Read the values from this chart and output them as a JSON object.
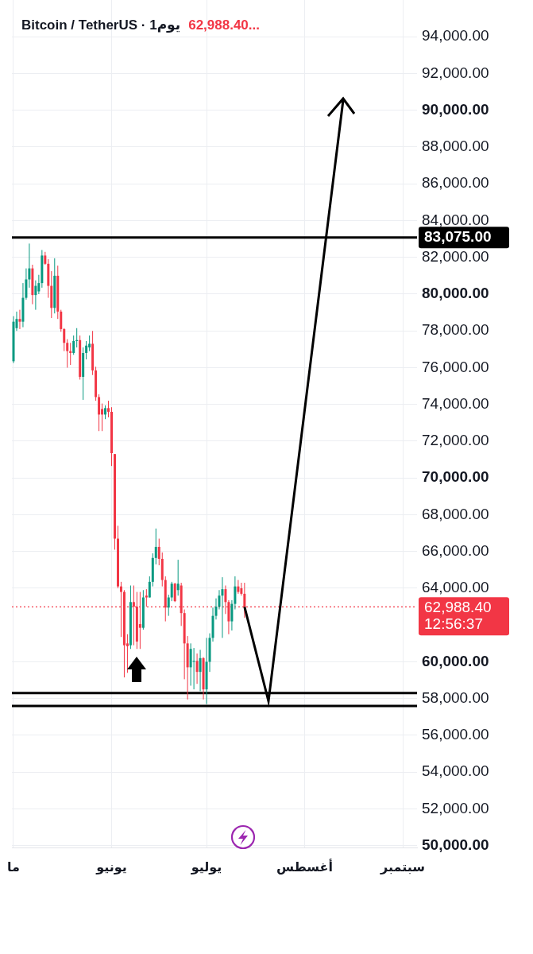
{
  "chart_data": {
    "type": "candlestick",
    "title": "Bitcoin / TetherUS · 1يوم",
    "subtitle": "62,988.40...",
    "categories": [
      "ما",
      null,
      null,
      null,
      null,
      null,
      null,
      null,
      null,
      null,
      null,
      null,
      null,
      null,
      null,
      null,
      null,
      null,
      null,
      null,
      null,
      null,
      null,
      null,
      null,
      null,
      null,
      null,
      null,
      null,
      null,
      "يونيو",
      null,
      null,
      null,
      null,
      null,
      null,
      null,
      null,
      null,
      null,
      null,
      null,
      null,
      null,
      null,
      null,
      null,
      null,
      null,
      null,
      null,
      null,
      null,
      null,
      null,
      null,
      null,
      null,
      null,
      "يوليو",
      null,
      null,
      null,
      null,
      null,
      null,
      null,
      null,
      null,
      null,
      null,
      null,
      null,
      null,
      null,
      null,
      null,
      null,
      null,
      null,
      null,
      null,
      null,
      null,
      null,
      null,
      null,
      null,
      null,
      null,
      "أغسطس",
      null,
      null,
      null,
      null,
      null,
      null,
      null,
      null,
      null,
      null,
      null,
      null,
      null,
      null,
      null,
      null,
      null,
      null,
      null,
      null,
      null,
      null,
      null,
      null,
      null,
      null,
      null,
      null,
      null,
      null,
      "سبتمبر",
      null,
      null,
      null,
      null
    ],
    "ohlc": [
      [
        76350,
        78800,
        76250,
        78500
      ],
      [
        78150,
        79050,
        78000,
        78650
      ],
      [
        78650,
        79150,
        78100,
        78500
      ],
      [
        78500,
        80600,
        78200,
        79800
      ],
      [
        79800,
        81400,
        79700,
        80800
      ],
      [
        80800,
        82750,
        80350,
        81400
      ],
      [
        81400,
        81600,
        79450,
        79950
      ],
      [
        79950,
        80750,
        79150,
        80450
      ],
      [
        80150,
        81050,
        80000,
        80600
      ],
      [
        80600,
        82400,
        80350,
        82100
      ],
      [
        82100,
        82300,
        81600,
        81650
      ],
      [
        81650,
        81900,
        79800,
        80450
      ],
      [
        80450,
        81250,
        78700,
        79250
      ],
      [
        79250,
        81950,
        78950,
        81000
      ],
      [
        81000,
        81550,
        78650,
        79050
      ],
      [
        79050,
        79150,
        77950,
        78100
      ],
      [
        78100,
        78150,
        76900,
        77350
      ],
      [
        77350,
        77550,
        76000,
        76900
      ],
      [
        76900,
        77350,
        76150,
        76800
      ],
      [
        76800,
        77750,
        76700,
        77450
      ],
      [
        77450,
        78150,
        77100,
        77500
      ],
      [
        77500,
        77750,
        75350,
        75500
      ],
      [
        75500,
        77100,
        74250,
        76800
      ],
      [
        76800,
        77450,
        76450,
        77200
      ],
      [
        77100,
        77750,
        76900,
        77300
      ],
      [
        77300,
        78000,
        75600,
        75850
      ],
      [
        75850,
        76050,
        74200,
        74400
      ],
      [
        74400,
        74550,
        72550,
        73450
      ],
      [
        73750,
        74050,
        72550,
        73450
      ],
      [
        73450,
        73950,
        73200,
        73800
      ],
      [
        73800,
        74200,
        73300,
        73600
      ],
      [
        73600,
        73850,
        70650,
        71350
      ],
      [
        71300,
        71300,
        66100,
        66700
      ],
      [
        66700,
        67400,
        64000,
        64100
      ],
      [
        64100,
        64350,
        61350,
        63800
      ],
      [
        63800,
        63900,
        59150,
        60900
      ],
      [
        61000,
        61500,
        59400,
        60850
      ],
      [
        60900,
        64150,
        60700,
        63250
      ],
      [
        63250,
        64150,
        60900,
        63000
      ],
      [
        63000,
        63800,
        60700,
        61100
      ],
      [
        62050,
        63800,
        60700,
        61850
      ],
      [
        61850,
        63900,
        61750,
        63500
      ],
      [
        63600,
        63950,
        63000,
        63500
      ],
      [
        63500,
        64650,
        63500,
        64350
      ],
      [
        64350,
        65900,
        64100,
        65650
      ],
      [
        65650,
        67250,
        65300,
        66250
      ],
      [
        66250,
        66700,
        65250,
        65600
      ],
      [
        65600,
        65950,
        64100,
        64450
      ],
      [
        64450,
        64650,
        62200,
        62950
      ],
      [
        62950,
        63650,
        62500,
        63500
      ],
      [
        63500,
        64350,
        63300,
        64250
      ],
      [
        64250,
        64300,
        63250,
        63300
      ],
      [
        63900,
        65550,
        63600,
        64250
      ],
      [
        64150,
        64300,
        61950,
        62650
      ],
      [
        62650,
        62850,
        59050,
        61000
      ],
      [
        61000,
        61400,
        57950,
        59700
      ],
      [
        59700,
        61000,
        58700,
        60700
      ],
      [
        60000,
        60750,
        58500,
        60050
      ],
      [
        60050,
        60450,
        58800,
        59450
      ],
      [
        59450,
        60650,
        58400,
        60200
      ],
      [
        60200,
        60250,
        57950,
        58500
      ],
      [
        58500,
        61300,
        57700,
        60000
      ],
      [
        60000,
        61550,
        59450,
        61300
      ],
      [
        61300,
        62950,
        61100,
        62500
      ],
      [
        62500,
        63450,
        62300,
        63000
      ],
      [
        63000,
        63900,
        62850,
        63600
      ],
      [
        63600,
        64600,
        61300,
        63950
      ],
      [
        63950,
        64150,
        62600,
        63250
      ],
      [
        63250,
        63350,
        61500,
        62200
      ],
      [
        62200,
        63350,
        61700,
        63150
      ],
      [
        63150,
        64650,
        62850,
        64100
      ],
      [
        64100,
        64450,
        63700,
        63800
      ],
      [
        64000,
        64300,
        63600,
        63700
      ],
      [
        63700,
        64300,
        62400,
        62988.4
      ],
      null,
      null,
      null,
      null,
      null,
      null,
      null,
      null,
      null,
      null,
      null,
      null,
      null,
      null,
      null,
      null,
      null,
      null,
      null,
      null,
      null,
      null,
      null,
      null,
      null,
      null,
      null,
      null,
      null,
      null,
      null,
      null,
      null,
      null,
      null,
      null,
      null,
      null,
      null,
      null,
      null,
      null,
      null,
      null,
      null,
      null,
      null,
      null,
      null,
      null,
      null,
      null,
      null,
      null
    ],
    "colors": [
      "#089981",
      "#089981",
      "#f23645",
      "#089981",
      "#089981",
      "#089981",
      "#f23645",
      "#089981",
      "#089981",
      "#089981",
      "#f23645",
      "#f23645",
      "#f23645",
      "#089981",
      "#f23645",
      "#f23645",
      "#f23645",
      "#f23645",
      "#f23645",
      "#089981",
      "#089981",
      "#f23645",
      "#089981",
      "#089981",
      "#089981",
      "#f23645",
      "#f23645",
      "#f23645",
      "#f23645",
      "#089981",
      "#f23645",
      "#f23645",
      "#f23645",
      "#f23645",
      "#f23645",
      "#f23645",
      "#f23645",
      "#089981",
      "#f23645",
      "#f23645",
      "#f23645",
      "#089981",
      "#f23645",
      "#089981",
      "#089981",
      "#089981",
      "#f23645",
      "#f23645",
      "#f23645",
      "#089981",
      "#089981",
      "#f23645",
      "#089981",
      "#f23645",
      "#f23645",
      "#f23645",
      "#089981",
      "#089981",
      "#f23645",
      "#089981",
      "#f23645",
      "#089981",
      "#089981",
      "#089981",
      "#089981",
      "#089981",
      "#089981",
      "#f23645",
      "#f23645",
      "#089981",
      "#089981",
      "#f23645",
      "#f23645",
      "#f23645",
      null,
      null,
      null,
      null,
      null,
      null,
      null,
      null,
      null,
      null,
      null,
      null,
      null,
      null,
      null,
      null,
      null,
      null,
      null,
      null,
      null,
      null,
      null,
      null,
      null,
      null,
      null,
      null,
      null,
      null,
      null,
      null,
      null,
      null,
      null,
      null,
      null,
      null,
      null,
      null,
      null,
      null,
      null,
      null,
      null,
      null,
      null,
      null,
      null,
      null,
      null,
      null,
      null,
      null
    ],
    "ylim": [
      49900,
      96000
    ],
    "yticks": [
      {
        "value": 50000,
        "label": "50,000.00"
      },
      {
        "value": 52000,
        "label": "52,000.00"
      },
      {
        "value": 54000,
        "label": "54,000.00"
      },
      {
        "value": 56000,
        "label": "56,000.00"
      },
      {
        "value": 58000,
        "label": "58,000.00"
      },
      {
        "value": 60000,
        "label": "60,000.00"
      },
      {
        "value": 64000,
        "label": "64,000.00"
      },
      {
        "value": 66000,
        "label": "66,000.00"
      },
      {
        "value": 68000,
        "label": "68,000.00"
      },
      {
        "value": 70000,
        "label": "70,000.00"
      },
      {
        "value": 72000,
        "label": "72,000.00"
      },
      {
        "value": 74000,
        "label": "74,000.00"
      },
      {
        "value": 76000,
        "label": "76,000.00"
      },
      {
        "value": 78000,
        "label": "78,000.00"
      },
      {
        "value": 80000,
        "label": "80,000.00"
      },
      {
        "value": 82000,
        "label": "82,000.00"
      },
      {
        "value": 84000,
        "label": "84,000.00"
      },
      {
        "value": 86000,
        "label": "86,000.00"
      },
      {
        "value": 88000,
        "label": "88,000.00"
      },
      {
        "value": 90000,
        "label": "90,000.00"
      },
      {
        "value": 92000,
        "label": "92,000.00"
      },
      {
        "value": 94000,
        "label": "94,000.00"
      }
    ],
    "ref_lines": [
      {
        "axis": "y",
        "value": 83075,
        "label": "83,075.00",
        "color": "#000000"
      },
      {
        "axis": "y",
        "value": 58300,
        "label": null,
        "color": "#000000"
      },
      {
        "axis": "y",
        "value": 57600,
        "label": null,
        "color": "#000000"
      },
      {
        "axis": "y",
        "value": 62988.4,
        "label": "62,988.40\n12:56:37",
        "color": "#f23645",
        "line_style": "dotted"
      }
    ],
    "grid": true
  }
}
